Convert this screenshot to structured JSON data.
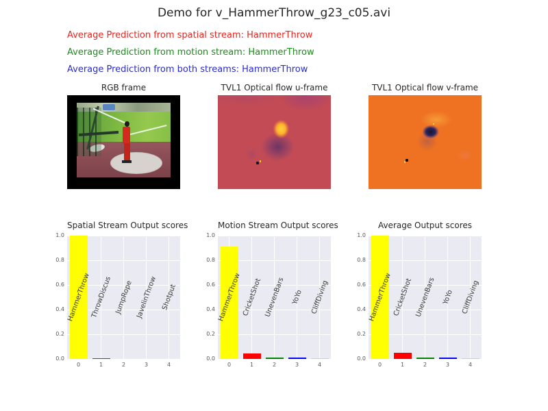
{
  "figure_title": "Demo for v_HammerThrow_g23_c05.avi",
  "predictions": [
    {
      "label": "Average Prediction from spatial stream: HammerThrow",
      "color": "#e8251f"
    },
    {
      "label": "Average Prediction from motion stream: HammerThrow",
      "color": "#1e8a1e"
    },
    {
      "label": "Average Prediction from both streams: HammerThrow",
      "color": "#2a2ad0"
    }
  ],
  "frames": [
    {
      "title": "RGB frame"
    },
    {
      "title": "TVL1 Optical flow u-frame"
    },
    {
      "title": "TVL1 Optical flow v-frame"
    }
  ],
  "colors": {
    "plot_background": "#eaeaf2",
    "grid": "#ffffff",
    "tick_label": "#555555",
    "flow_u_background": "#c24b55",
    "flow_v_background": "#ee7222"
  },
  "chart_data": [
    {
      "type": "bar",
      "title": "Spatial Stream Output scores",
      "categories": [
        "0",
        "1",
        "2",
        "3",
        "4"
      ],
      "bar_labels": [
        "HammerThrow",
        "ThrowDiscus",
        "JumpRope",
        "JavelinThrow",
        "Shotput"
      ],
      "values": [
        1.0,
        0.005,
        0.001,
        0.001,
        0.001
      ],
      "bar_colors": [
        "#ffff00",
        "#ff0000",
        "#008000",
        "#0000ff",
        "#add8e6"
      ],
      "xlabel": "",
      "ylabel": "",
      "ylim": [
        0.0,
        1.0
      ],
      "yticks": [
        0.0,
        0.2,
        0.4,
        0.6,
        0.8,
        1.0
      ],
      "grid": true,
      "legend": false
    },
    {
      "type": "bar",
      "title": "Motion Stream Output scores",
      "categories": [
        "0",
        "1",
        "2",
        "3",
        "4"
      ],
      "bar_labels": [
        "HammerThrow",
        "CricketShot",
        "UnevenBars",
        "YoYo",
        "CliffDiving"
      ],
      "values": [
        0.91,
        0.045,
        0.011,
        0.012,
        0.008
      ],
      "bar_colors": [
        "#ffff00",
        "#ff0000",
        "#008000",
        "#0000ff",
        "#add8e6"
      ],
      "xlabel": "",
      "ylabel": "",
      "ylim": [
        0.0,
        1.0
      ],
      "yticks": [
        0.0,
        0.2,
        0.4,
        0.6,
        0.8,
        1.0
      ],
      "grid": true,
      "legend": false
    },
    {
      "type": "bar",
      "title": "Average Output scores",
      "categories": [
        "0",
        "1",
        "2",
        "3",
        "4"
      ],
      "bar_labels": [
        "HammerThrow",
        "CricketShot",
        "UnevenBars",
        "YoYo",
        "CliffDiving"
      ],
      "values": [
        1.0,
        0.05,
        0.009,
        0.011,
        0.006
      ],
      "bar_colors": [
        "#ffff00",
        "#ff0000",
        "#008000",
        "#0000ff",
        "#add8e6"
      ],
      "xlabel": "",
      "ylabel": "",
      "ylim": [
        0.0,
        1.0
      ],
      "yticks": [
        0.0,
        0.2,
        0.4,
        0.6,
        0.8,
        1.0
      ],
      "grid": true,
      "legend": false
    }
  ]
}
